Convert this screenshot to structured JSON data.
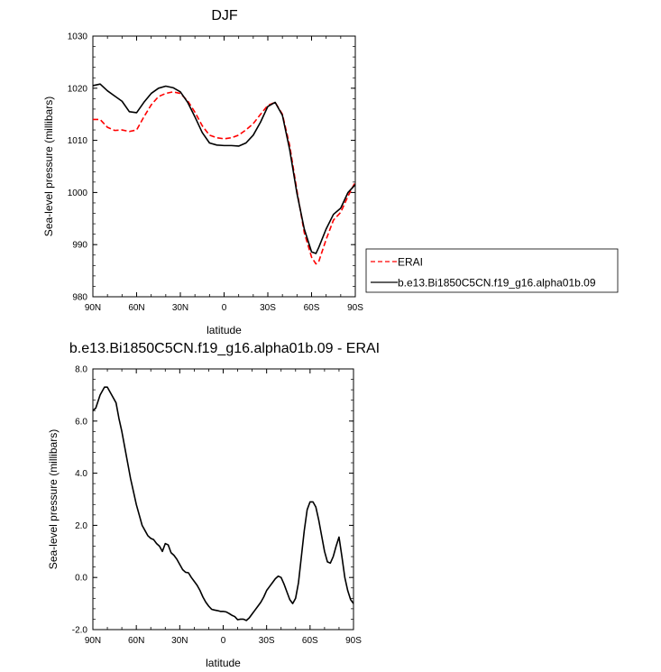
{
  "chart_data": [
    {
      "type": "line",
      "title": "DJF",
      "xlabel": "latitude",
      "ylabel": "Sea-level pressure (millibars)",
      "xlim": [
        90,
        -90
      ],
      "ylim": [
        980,
        1030
      ],
      "x_ticks": [
        90,
        60,
        30,
        0,
        -30,
        -60,
        -90
      ],
      "x_tick_labels": [
        "90N",
        "60N",
        "30N",
        "0",
        "30S",
        "60S",
        "90S"
      ],
      "y_ticks": [
        980,
        990,
        1000,
        1010,
        1020,
        1030
      ],
      "y_tick_labels": [
        "980",
        "990",
        "1000",
        "1010",
        "1020",
        "1030"
      ],
      "grid": false,
      "legend_position": "right, outside plot area",
      "series": [
        {
          "name": "ERAI",
          "color": "#ff0000",
          "dash": "dashed",
          "x": [
            90,
            85,
            80,
            75,
            70,
            65,
            60,
            55,
            50,
            45,
            40,
            35,
            30,
            25,
            20,
            15,
            10,
            5,
            0,
            -5,
            -10,
            -15,
            -20,
            -25,
            -30,
            -35,
            -40,
            -45,
            -50,
            -55,
            -60,
            -63,
            -65,
            -70,
            -75,
            -80,
            -85,
            -90
          ],
          "values": [
            1014.0,
            1014.0,
            1012.5,
            1011.9,
            1012.0,
            1011.7,
            1012.0,
            1014.5,
            1016.8,
            1018.4,
            1019.0,
            1019.3,
            1019.0,
            1017.6,
            1015.4,
            1012.8,
            1011.0,
            1010.5,
            1010.3,
            1010.5,
            1011.0,
            1012.0,
            1013.2,
            1015.0,
            1016.7,
            1017.3,
            1015.0,
            1009.0,
            1000.3,
            992.3,
            987.6,
            986.3,
            986.8,
            991.0,
            994.7,
            996.2,
            999.3,
            1002.0
          ]
        },
        {
          "name": "b.e13.Bi1850C5CN.f19_g16.alpha01b.09",
          "color": "#000000",
          "dash": "solid",
          "x": [
            90,
            85,
            80,
            75,
            70,
            65,
            60,
            55,
            50,
            45,
            40,
            35,
            30,
            25,
            20,
            15,
            10,
            5,
            0,
            -5,
            -10,
            -15,
            -20,
            -25,
            -30,
            -35,
            -40,
            -45,
            -50,
            -55,
            -60,
            -63,
            -65,
            -70,
            -75,
            -80,
            -85,
            -90
          ],
          "values": [
            1020.5,
            1020.8,
            1019.5,
            1018.5,
            1017.5,
            1015.5,
            1015.3,
            1017.3,
            1019.0,
            1020.0,
            1020.4,
            1020.1,
            1019.3,
            1017.3,
            1014.5,
            1011.5,
            1009.5,
            1009.1,
            1009.0,
            1009.0,
            1008.9,
            1009.5,
            1011.0,
            1013.5,
            1016.5,
            1017.3,
            1014.8,
            1008.2,
            999.8,
            993.0,
            988.6,
            988.3,
            989.5,
            993.0,
            995.8,
            997.0,
            1000.0,
            1001.5
          ]
        }
      ]
    },
    {
      "type": "line",
      "title": "b.e13.Bi1850C5CN.f19_g16.alpha01b.09 - ERAI",
      "xlabel": "latitude",
      "ylabel": "Sea-level pressure (millibars)",
      "xlim": [
        90,
        -90
      ],
      "ylim": [
        -2.0,
        8.0
      ],
      "x_ticks": [
        90,
        60,
        30,
        0,
        -30,
        -60,
        -90
      ],
      "x_tick_labels": [
        "90N",
        "60N",
        "30N",
        "0",
        "30S",
        "60S",
        "90S"
      ],
      "y_ticks": [
        -2.0,
        0.0,
        2.0,
        4.0,
        6.0,
        8.0
      ],
      "y_tick_labels": [
        "-2.0",
        "0.0",
        "2.0",
        "4.0",
        "6.0",
        "8.0"
      ],
      "grid": false,
      "series": [
        {
          "color": "#000000",
          "dash": "solid",
          "x": [
            90,
            88,
            85,
            82,
            80,
            77,
            74,
            72,
            70,
            68,
            66,
            64,
            62,
            60,
            58,
            56,
            54,
            52,
            50,
            48,
            46,
            44,
            42,
            40,
            38,
            36,
            34,
            32,
            30,
            28,
            26,
            24,
            22,
            20,
            18,
            16,
            14,
            12,
            10,
            8,
            6,
            4,
            2,
            0,
            -2,
            -4,
            -6,
            -8,
            -10,
            -12,
            -14,
            -16,
            -18,
            -20,
            -22,
            -24,
            -26,
            -28,
            -30,
            -32,
            -34,
            -36,
            -38,
            -40,
            -42,
            -44,
            -46,
            -48,
            -50,
            -52,
            -54,
            -56,
            -58,
            -60,
            -62,
            -64,
            -66,
            -68,
            -70,
            -72,
            -74,
            -76,
            -78,
            -80,
            -82,
            -84,
            -86,
            -88,
            -90
          ],
          "values": [
            6.4,
            6.5,
            7.0,
            7.3,
            7.3,
            7.0,
            6.7,
            6.1,
            5.6,
            5.0,
            4.4,
            3.8,
            3.3,
            2.8,
            2.4,
            2.0,
            1.8,
            1.6,
            1.5,
            1.45,
            1.3,
            1.2,
            1.0,
            1.3,
            1.25,
            0.95,
            0.85,
            0.7,
            0.5,
            0.3,
            0.2,
            0.18,
            0.0,
            -0.15,
            -0.3,
            -0.5,
            -0.75,
            -0.95,
            -1.1,
            -1.22,
            -1.25,
            -1.27,
            -1.3,
            -1.3,
            -1.32,
            -1.38,
            -1.45,
            -1.5,
            -1.62,
            -1.6,
            -1.6,
            -1.65,
            -1.55,
            -1.4,
            -1.25,
            -1.1,
            -0.95,
            -0.75,
            -0.5,
            -0.35,
            -0.2,
            -0.05,
            0.05,
            0.0,
            -0.25,
            -0.55,
            -0.85,
            -1.0,
            -0.8,
            -0.2,
            0.8,
            1.8,
            2.6,
            2.9,
            2.9,
            2.7,
            2.2,
            1.6,
            1.0,
            0.6,
            0.55,
            0.8,
            1.2,
            1.55,
            0.8,
            0.0,
            -0.5,
            -0.85,
            -1.0
          ]
        }
      ]
    }
  ]
}
